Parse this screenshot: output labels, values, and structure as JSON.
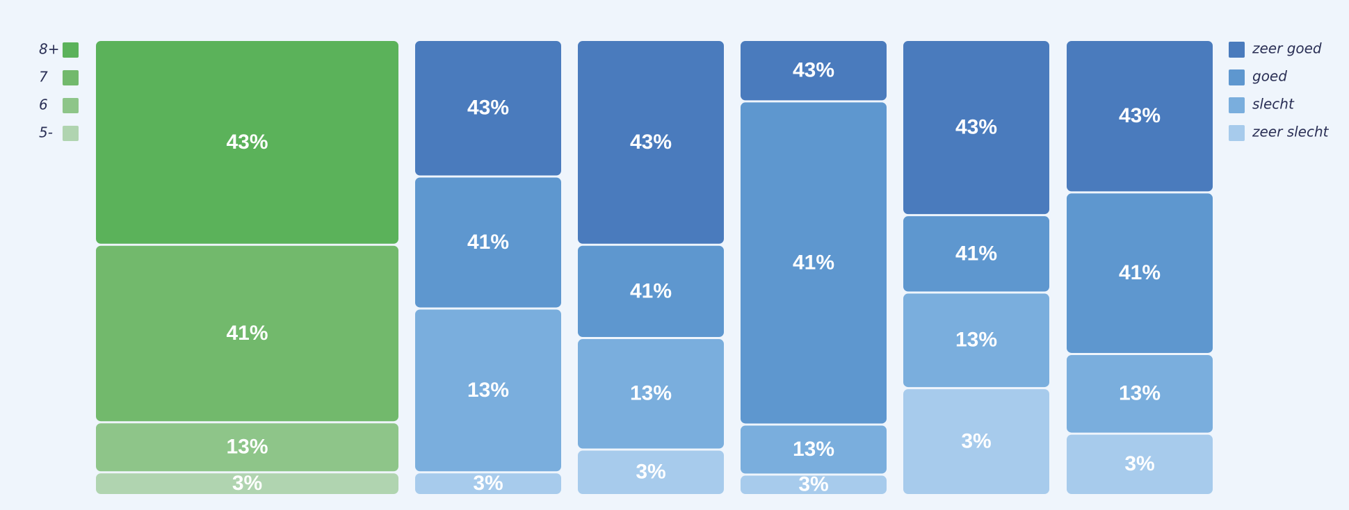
{
  "chart_data": {
    "type": "stacked-bar",
    "grade_legend": [
      {
        "label": "8+",
        "color": "#5bb25a"
      },
      {
        "label": "7",
        "color": "#72b96c"
      },
      {
        "label": "6",
        "color": "#8ec589"
      },
      {
        "label": "5-",
        "color": "#b0d4b0"
      }
    ],
    "rating_legend": [
      {
        "label": "zeer goed",
        "color": "#4a7bbd"
      },
      {
        "label": "goed",
        "color": "#5e97cf"
      },
      {
        "label": "slecht",
        "color": "#7aaedd"
      },
      {
        "label": "zeer slecht",
        "color": "#a7cbec"
      }
    ],
    "bars": [
      {
        "palette": "grade",
        "values": [
          43,
          41,
          13,
          3
        ],
        "labels": [
          "43%",
          "41%",
          "13%",
          "3%"
        ],
        "shares": [
          45,
          39,
          11,
          5
        ]
      },
      {
        "palette": "rating",
        "values": [
          43,
          41,
          13,
          3
        ],
        "labels": [
          "43%",
          "41%",
          "13%",
          "3%"
        ],
        "shares": [
          30,
          29,
          36,
          5
        ]
      },
      {
        "palette": "rating",
        "values": [
          43,
          41,
          13,
          3
        ],
        "labels": [
          "43%",
          "41%",
          "13%",
          "3%"
        ],
        "shares": [
          45,
          20.5,
          24.5,
          10
        ]
      },
      {
        "palette": "rating",
        "values": [
          43,
          41,
          13,
          3
        ],
        "labels": [
          "43%",
          "41%",
          "13%",
          "3%"
        ],
        "shares": [
          13.5,
          71,
          11,
          4.5
        ]
      },
      {
        "palette": "rating",
        "values": [
          43,
          41,
          13,
          3
        ],
        "labels": [
          "43%",
          "41%",
          "13%",
          "3%"
        ],
        "shares": [
          38.5,
          17,
          21,
          23.5
        ]
      },
      {
        "palette": "rating",
        "values": [
          43,
          41,
          13,
          3
        ],
        "labels": [
          "43%",
          "41%",
          "13%",
          "3%"
        ],
        "shares": [
          33.5,
          35.5,
          17.5,
          13.5
        ]
      }
    ]
  }
}
